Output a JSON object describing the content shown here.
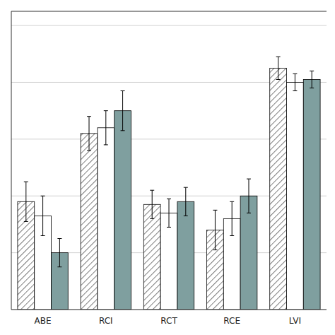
{
  "chart_data": {
    "type": "bar",
    "categories": [
      "ABE",
      "RCI",
      "RCT",
      "RCE",
      "LVI"
    ],
    "series": [
      {
        "color": "#ffffff",
        "values": [
          0.38,
          0.62,
          0.37,
          0.28,
          0.85
        ],
        "errors": [
          0.07,
          0.06,
          0.05,
          0.07,
          0.04
        ]
      },
      {
        "color": "#ffffff",
        "values": [
          0.33,
          0.64,
          0.34,
          0.32,
          0.8
        ],
        "errors": [
          0.07,
          0.06,
          0.05,
          0.06,
          0.03
        ]
      },
      {
        "color": "#7f9f9f",
        "values": [
          0.2,
          0.7,
          0.38,
          0.4,
          0.81
        ],
        "errors": [
          0.05,
          0.07,
          0.05,
          0.06,
          0.03
        ]
      }
    ],
    "ylim": [
      0.0,
      1.05
    ],
    "yticks": [
      0.0,
      0.2,
      0.4,
      0.6,
      0.8,
      1.0
    ],
    "grid": true,
    "tick_labels": "x"
  }
}
